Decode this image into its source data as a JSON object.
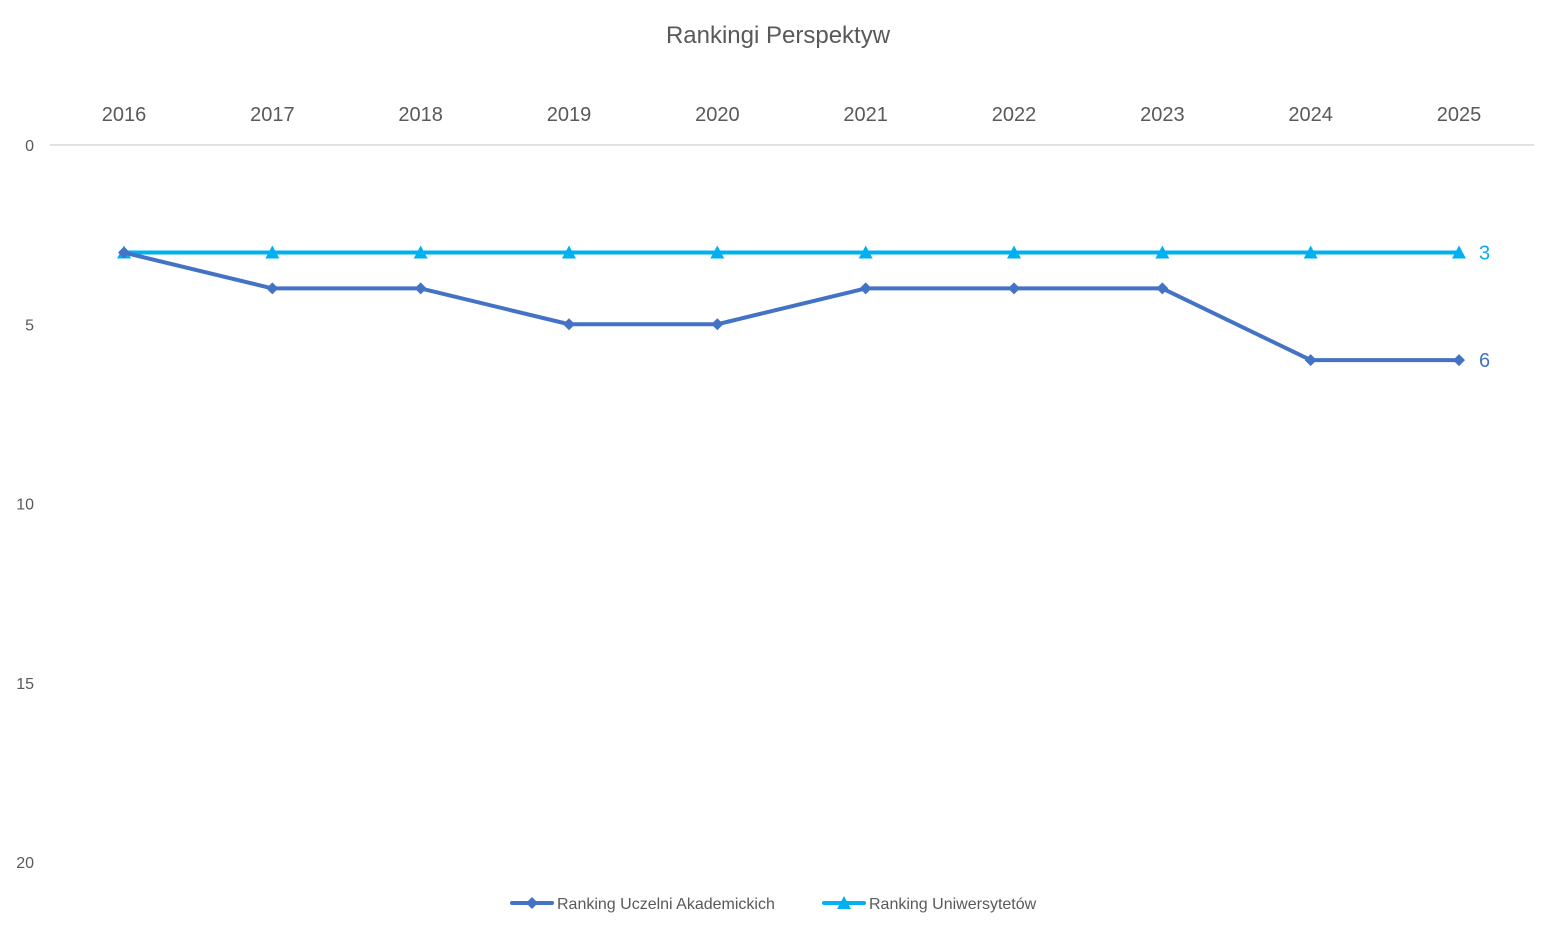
{
  "chart_data": {
    "type": "line",
    "title": "Rankingi Perspektyw",
    "xlabel": "",
    "ylabel": "",
    "categories": [
      "2016",
      "2017",
      "2018",
      "2019",
      "2020",
      "2021",
      "2022",
      "2023",
      "2024",
      "2025"
    ],
    "ylim": [
      0,
      20
    ],
    "y_reversed": true,
    "y_ticks": [
      0,
      5,
      10,
      15,
      20
    ],
    "x_axis_position": "top",
    "grid": false,
    "legend_position": "bottom",
    "series": [
      {
        "name": "Ranking Uczelni Akademickich",
        "values": [
          3,
          4,
          4,
          5,
          5,
          4,
          4,
          4,
          6,
          6
        ],
        "color": "#4472C4",
        "marker": "diamond",
        "last_label": "6"
      },
      {
        "name": "Ranking Uniwersytetów",
        "values": [
          3,
          3,
          3,
          3,
          3,
          3,
          3,
          3,
          3,
          3
        ],
        "color": "#00B0F0",
        "marker": "triangle",
        "last_label": "3"
      }
    ]
  }
}
